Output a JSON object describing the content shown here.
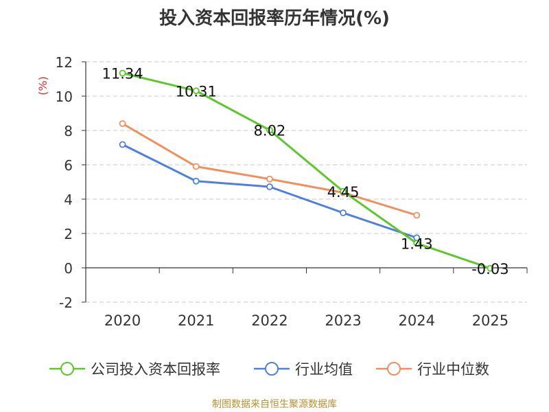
{
  "title": "投入资本回报率历年情况(%)",
  "source": "制图数据来自恒生聚源数据库",
  "chart_data": {
    "type": "line",
    "title": "投入资本回报率历年情况(%)",
    "xlabel": "",
    "ylabel": "(%)",
    "categories": [
      "2020",
      "2021",
      "2022",
      "2023",
      "2024",
      "2025"
    ],
    "ylim": [
      -2,
      12
    ],
    "yticks": [
      -2,
      0,
      2,
      4,
      6,
      8,
      10,
      12
    ],
    "grid": true,
    "legend_position": "bottom",
    "series": [
      {
        "name": "公司投入资本回报率",
        "color": "#5cc72a",
        "values": [
          11.34,
          10.31,
          8.02,
          4.45,
          1.43,
          -0.03
        ],
        "labels": [
          "11.34",
          "10.31",
          "8.02",
          "4.45",
          "1.43",
          "-0.03"
        ]
      },
      {
        "name": "行业均值",
        "color": "#4f7fde",
        "values": [
          7.18,
          5.05,
          4.72,
          3.2,
          1.75,
          null
        ]
      },
      {
        "name": "行业中位数",
        "color": "#f28e5b",
        "values": [
          8.4,
          5.9,
          5.17,
          4.38,
          3.06,
          null
        ]
      }
    ]
  }
}
